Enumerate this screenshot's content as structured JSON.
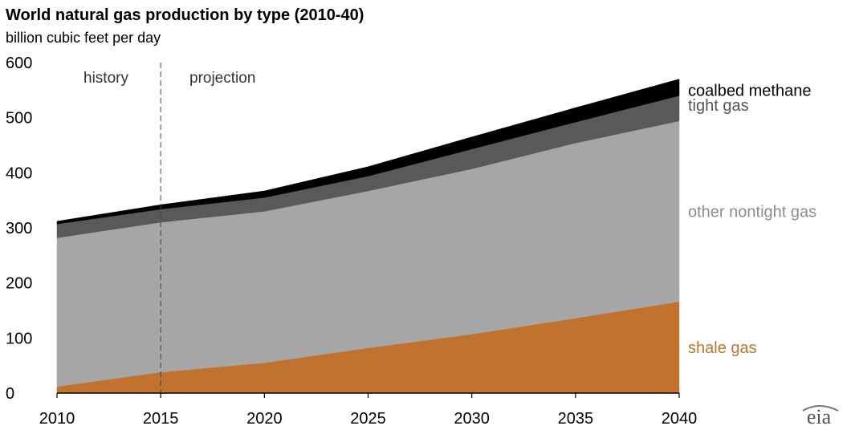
{
  "chart_data": {
    "type": "area",
    "stacked": true,
    "title": "World natural gas production by type (2010-40)",
    "subtitle": "billion cubic feet per day",
    "xlabel": "",
    "ylabel": "",
    "x": [
      2010,
      2015,
      2020,
      2025,
      2030,
      2035,
      2040
    ],
    "xlim": [
      2010,
      2040
    ],
    "ylim": [
      0,
      600
    ],
    "x_ticks": [
      "2010",
      "2015",
      "2020",
      "2025",
      "2030",
      "2035",
      "2040"
    ],
    "y_ticks": [
      "0",
      "100",
      "200",
      "300",
      "400",
      "500",
      "600"
    ],
    "series": [
      {
        "name": "shale gas",
        "color": "#c0732e",
        "values": [
          12,
          38,
          55,
          82,
          107,
          136,
          166
        ]
      },
      {
        "name": "other nontight gas",
        "color": "#a6a6a6",
        "values": [
          270,
          272,
          275,
          285,
          300,
          318,
          328
        ]
      },
      {
        "name": "tight gas",
        "color": "#595959",
        "values": [
          25,
          24,
          25,
          27,
          36,
          38,
          46
        ]
      },
      {
        "name": "coalbed methane",
        "color": "#000000",
        "values": [
          5,
          8,
          12,
          17,
          22,
          26,
          30
        ]
      }
    ],
    "annotations": {
      "divider_year": 2015,
      "history_label": "history",
      "projection_label": "projection"
    },
    "legend_placement": "right, labels beside series",
    "grid": false
  },
  "source_logo": "eia"
}
